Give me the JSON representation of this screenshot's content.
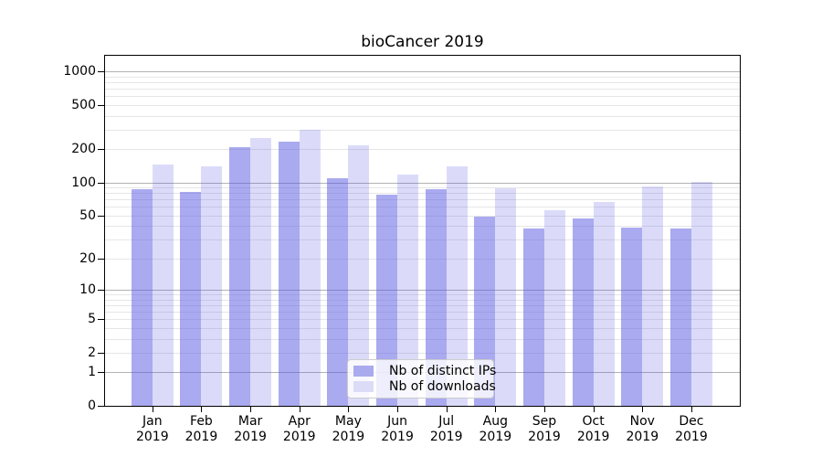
{
  "chart_data": {
    "type": "bar",
    "title": "bioCancer 2019",
    "scale": "log1p",
    "year": "2019",
    "categories": [
      "Jan",
      "Feb",
      "Mar",
      "Apr",
      "May",
      "Jun",
      "Jul",
      "Aug",
      "Sep",
      "Oct",
      "Nov",
      "Dec"
    ],
    "series": [
      {
        "name": "Nb of distinct IPs",
        "swatch_color": "#aaaaee",
        "bar_color": "rgba(85,85,225,0.50)",
        "values": [
          87,
          82,
          210,
          233,
          110,
          78,
          86,
          49,
          38,
          47,
          39,
          38
        ]
      },
      {
        "name": "Nb of downloads",
        "swatch_color": "#dcdcf7",
        "bar_color": "rgba(85,85,225,0.21)",
        "values": [
          145,
          140,
          252,
          300,
          216,
          118,
          139,
          89,
          56,
          67,
          91,
          101
        ]
      }
    ],
    "ylim": [
      0,
      1380
    ],
    "y_ticks": [
      {
        "value": 0,
        "label": "0"
      },
      {
        "value": 1,
        "label": "1"
      },
      {
        "value": 2,
        "label": "2"
      },
      {
        "value": 5,
        "label": "5"
      },
      {
        "value": 10,
        "label": "10"
      },
      {
        "value": 20,
        "label": "20"
      },
      {
        "value": 50,
        "label": "50"
      },
      {
        "value": 100,
        "label": "100"
      },
      {
        "value": 200,
        "label": "200"
      },
      {
        "value": 500,
        "label": "500"
      },
      {
        "value": 1000,
        "label": "1000"
      }
    ],
    "major_gridlines": [
      1,
      10,
      100,
      1000
    ],
    "minor_gridlines": [
      2,
      3,
      4,
      5,
      6,
      7,
      8,
      9,
      20,
      30,
      40,
      50,
      60,
      70,
      80,
      90,
      200,
      300,
      400,
      500,
      600,
      700,
      800,
      900
    ],
    "legend": {
      "position": "lower center"
    },
    "colors": {
      "axis": "#000000",
      "major_grid": "#b2b2b2",
      "minor_grid": "#e6e6e6",
      "background": "#ffffff",
      "text": "#000000"
    },
    "grid": true
  }
}
